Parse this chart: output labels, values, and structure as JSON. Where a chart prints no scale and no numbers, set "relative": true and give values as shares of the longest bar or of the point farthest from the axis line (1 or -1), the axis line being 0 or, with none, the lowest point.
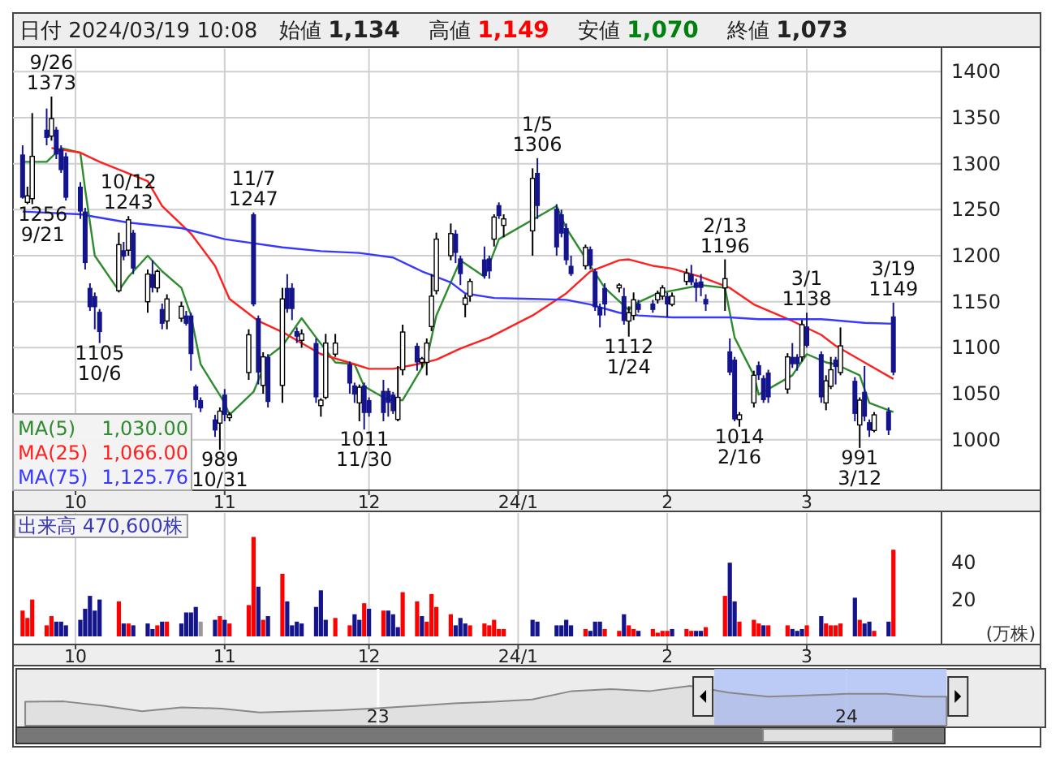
{
  "chart_data": [
    {
      "type": "candlestick",
      "title": "日付 2024/03/19 10:08",
      "x": [
        "2023-09-20",
        "2023-09-21",
        "2023-09-22",
        "2023-09-25",
        "2023-09-26",
        "2023-09-27",
        "2023-09-28",
        "2023-09-29",
        "2023-10-02",
        "2023-10-03",
        "2023-10-04",
        "2023-10-05",
        "2023-10-06",
        "2023-10-10",
        "2023-10-11",
        "2023-10-12",
        "2023-10-13",
        "2023-10-16",
        "2023-10-17",
        "2023-10-18",
        "2023-10-19",
        "2023-10-20",
        "2023-10-23",
        "2023-10-24",
        "2023-10-25",
        "2023-10-26",
        "2023-10-27",
        "2023-10-30",
        "2023-10-31",
        "2023-11-01",
        "2023-11-02",
        "2023-11-06",
        "2023-11-07",
        "2023-11-08",
        "2023-11-09",
        "2023-11-10",
        "2023-11-13",
        "2023-11-14",
        "2023-11-15",
        "2023-11-16",
        "2023-11-17",
        "2023-11-20",
        "2023-11-21",
        "2023-11-22",
        "2023-11-24",
        "2023-11-27",
        "2023-11-28",
        "2023-11-29",
        "2023-11-30",
        "2023-12-01",
        "2023-12-04",
        "2023-12-05",
        "2023-12-06",
        "2023-12-07",
        "2023-12-08",
        "2023-12-11",
        "2023-12-12",
        "2023-12-13",
        "2023-12-14",
        "2023-12-15",
        "2023-12-18",
        "2023-12-19",
        "2023-12-20",
        "2023-12-21",
        "2023-12-22",
        "2023-12-25",
        "2023-12-26",
        "2023-12-27",
        "2023-12-28",
        "2023-12-29",
        "2024-01-04",
        "2024-01-05",
        "2024-01-09",
        "2024-01-10",
        "2024-01-11",
        "2024-01-12",
        "2024-01-15",
        "2024-01-16",
        "2024-01-17",
        "2024-01-18",
        "2024-01-19",
        "2024-01-22",
        "2024-01-23",
        "2024-01-24",
        "2024-01-25",
        "2024-01-26",
        "2024-01-29",
        "2024-01-30",
        "2024-01-31",
        "2024-02-01",
        "2024-02-02",
        "2024-02-05",
        "2024-02-06",
        "2024-02-07",
        "2024-02-08",
        "2024-02-09",
        "2024-02-13",
        "2024-02-14",
        "2024-02-15",
        "2024-02-16",
        "2024-02-19",
        "2024-02-20",
        "2024-02-21",
        "2024-02-22",
        "2024-02-26",
        "2024-02-27",
        "2024-02-28",
        "2024-02-29",
        "2024-03-01",
        "2024-03-04",
        "2024-03-05",
        "2024-03-06",
        "2024-03-07",
        "2024-03-08",
        "2024-03-11",
        "2024-03-12",
        "2024-03-13",
        "2024-03-14",
        "2024-03-15",
        "2024-03-18",
        "2024-03-19"
      ],
      "ohlc": [
        [
          1310,
          1320,
          1262,
          1263
        ],
        [
          1258,
          1275,
          1256,
          1265
        ],
        [
          1262,
          1355,
          1256,
          1308
        ],
        [
          1337,
          1360,
          1320,
          1328
        ],
        [
          1330,
          1373,
          1325,
          1349
        ],
        [
          1337,
          1340,
          1305,
          1310
        ],
        [
          1316,
          1320,
          1290,
          1293
        ],
        [
          1308,
          1312,
          1260,
          1263
        ],
        [
          1275,
          1280,
          1240,
          1248
        ],
        [
          1248,
          1252,
          1185,
          1192
        ],
        [
          1165,
          1170,
          1140,
          1144
        ],
        [
          1156,
          1160,
          1120,
          1144
        ],
        [
          1139,
          1142,
          1105,
          1117
        ],
        [
          1162,
          1225,
          1160,
          1212
        ],
        [
          1206,
          1215,
          1195,
          1199
        ],
        [
          1206,
          1243,
          1200,
          1239
        ],
        [
          1225,
          1228,
          1180,
          1186
        ],
        [
          1150,
          1185,
          1138,
          1180
        ],
        [
          1180,
          1195,
          1160,
          1165
        ],
        [
          1165,
          1185,
          1160,
          1183
        ],
        [
          1142,
          1148,
          1120,
          1126
        ],
        [
          1129,
          1158,
          1120,
          1153
        ],
        [
          1132,
          1150,
          1128,
          1145
        ],
        [
          1135,
          1140,
          1124,
          1126
        ],
        [
          1135,
          1138,
          1075,
          1093
        ],
        [
          1058,
          1060,
          1035,
          1043
        ],
        [
          1043,
          1046,
          1030,
          1034
        ],
        [
          1022,
          1027,
          1003,
          1010
        ],
        [
          1018,
          1035,
          989,
          1031
        ],
        [
          1049,
          1055,
          1020,
          1027
        ],
        [
          1024,
          1030,
          1020,
          1027
        ],
        [
          1073,
          1120,
          1065,
          1114
        ],
        [
          1245,
          1247,
          1145,
          1147
        ],
        [
          1132,
          1135,
          1060,
          1073
        ],
        [
          1059,
          1095,
          1050,
          1090
        ],
        [
          1090,
          1093,
          1035,
          1041
        ],
        [
          1059,
          1165,
          1040,
          1153
        ],
        [
          1165,
          1180,
          1138,
          1142
        ],
        [
          1165,
          1170,
          1130,
          1142
        ],
        [
          1118,
          1122,
          1105,
          1112
        ],
        [
          1108,
          1120,
          1100,
          1115
        ],
        [
          1105,
          1110,
          1040,
          1046
        ],
        [
          1037,
          1045,
          1025,
          1043
        ],
        [
          1046,
          1115,
          1044,
          1105
        ],
        [
          1093,
          1115,
          1090,
          1105
        ],
        [
          1082,
          1085,
          1050,
          1061
        ],
        [
          1059,
          1062,
          1040,
          1049
        ],
        [
          1040,
          1060,
          1020,
          1057
        ],
        [
          1059,
          1062,
          1011,
          1029
        ],
        [
          1043,
          1046,
          1025,
          1029
        ],
        [
          1053,
          1065,
          1020,
          1029
        ],
        [
          1053,
          1056,
          1025,
          1040
        ],
        [
          1049,
          1052,
          1028,
          1031
        ],
        [
          1022,
          1080,
          1020,
          1046
        ],
        [
          1076,
          1125,
          1070,
          1117
        ],
        [
          1102,
          1105,
          1075,
          1084
        ],
        [
          1084,
          1090,
          1078,
          1088
        ],
        [
          1084,
          1110,
          1070,
          1105
        ],
        [
          1123,
          1180,
          1118,
          1156
        ],
        [
          1162,
          1225,
          1158,
          1218
        ],
        [
          1200,
          1235,
          1195,
          1224
        ],
        [
          1224,
          1228,
          1192,
          1203
        ],
        [
          1197,
          1200,
          1168,
          1180
        ],
        [
          1147,
          1158,
          1133,
          1154
        ],
        [
          1156,
          1175,
          1150,
          1172
        ],
        [
          1196,
          1210,
          1175,
          1178
        ],
        [
          1197,
          1200,
          1175,
          1183
        ],
        [
          1218,
          1245,
          1210,
          1242
        ],
        [
          1255,
          1258,
          1240,
          1243
        ],
        [
          1233,
          1245,
          1220,
          1240
        ],
        [
          1227,
          1295,
          1200,
          1284
        ],
        [
          1290,
          1306,
          1240,
          1254
        ],
        [
          1251,
          1256,
          1200,
          1209
        ],
        [
          1245,
          1250,
          1220,
          1224
        ],
        [
          1230,
          1235,
          1190,
          1195
        ],
        [
          1189,
          1200,
          1178,
          1180
        ],
        [
          1189,
          1212,
          1185,
          1209
        ],
        [
          1207,
          1210,
          1185,
          1189
        ],
        [
          1183,
          1186,
          1140,
          1144
        ],
        [
          1144,
          1148,
          1122,
          1135
        ],
        [
          1165,
          1170,
          1135,
          1147
        ],
        [
          1165,
          1170,
          1160,
          1168
        ],
        [
          1156,
          1165,
          1125,
          1129
        ],
        [
          1129,
          1145,
          1112,
          1138
        ],
        [
          1135,
          1160,
          1130,
          1152
        ],
        [
          1148,
          1152,
          1138,
          1141
        ],
        [
          1148,
          1152,
          1138,
          1141
        ],
        [
          1152,
          1162,
          1148,
          1159
        ],
        [
          1156,
          1168,
          1152,
          1165
        ],
        [
          1156,
          1160,
          1133,
          1147
        ],
        [
          1147,
          1160,
          1145,
          1156
        ],
        [
          1172,
          1186,
          1168,
          1181
        ],
        [
          1180,
          1190,
          1168,
          1171
        ],
        [
          1171,
          1175,
          1150,
          1165
        ],
        [
          1172,
          1180,
          1156,
          1165
        ],
        [
          1153,
          1158,
          1140,
          1147
        ],
        [
          1165,
          1196,
          1140,
          1175
        ],
        [
          1096,
          1110,
          1070,
          1073
        ],
        [
          1087,
          1090,
          1020,
          1022
        ],
        [
          1022,
          1030,
          1014,
          1027
        ],
        [
          1040,
          1075,
          1035,
          1070
        ],
        [
          1081,
          1085,
          1065,
          1070
        ],
        [
          1067,
          1070,
          1040,
          1043
        ],
        [
          1073,
          1076,
          1040,
          1046
        ],
        [
          1055,
          1094,
          1050,
          1090
        ],
        [
          1090,
          1105,
          1078,
          1082
        ],
        [
          1090,
          1093,
          1075,
          1082
        ],
        [
          1090,
          1130,
          1085,
          1125
        ],
        [
          1123,
          1138,
          1100,
          1102
        ],
        [
          1093,
          1096,
          1040,
          1046
        ],
        [
          1040,
          1070,
          1032,
          1064
        ],
        [
          1058,
          1090,
          1055,
          1076
        ],
        [
          1087,
          1090,
          1060,
          1079
        ],
        [
          1073,
          1122,
          1070,
          1102
        ],
        [
          1064,
          1068,
          1020,
          1028
        ],
        [
          1016,
          1046,
          991,
          1043
        ],
        [
          1052,
          1080,
          1020,
          1025
        ],
        [
          1019,
          1022,
          1003,
          1010
        ],
        [
          1010,
          1030,
          1008,
          1027
        ],
        [
          1031,
          1035,
          1005,
          1010
        ],
        [
          1134,
          1149,
          1070,
          1073
        ]
      ],
      "series": [
        {
          "name": "MA(5)",
          "type": "line",
          "color": "#2e8b2e",
          "x": [
            "2023-09-20",
            "2023-09-25",
            "2023-09-28",
            "2023-10-02",
            "2023-10-03",
            "2023-10-05",
            "2023-10-10",
            "2023-10-12",
            "2023-10-16",
            "2023-10-19",
            "2023-10-23",
            "2023-10-25",
            "2023-10-27",
            "2023-11-01",
            "2023-11-02",
            "2023-11-07",
            "2023-11-10",
            "2023-11-13",
            "2023-11-15",
            "2023-11-17",
            "2023-11-20",
            "2023-11-24",
            "2023-11-28",
            "2023-11-30",
            "2023-12-05",
            "2023-12-08",
            "2023-12-13",
            "2023-12-15",
            "2023-12-20",
            "2023-12-25",
            "2023-12-28",
            "2024-01-09",
            "2024-01-11",
            "2024-01-16",
            "2024-01-19",
            "2024-01-24",
            "2024-01-25",
            "2024-01-30",
            "2024-02-02",
            "2024-02-08",
            "2024-02-13",
            "2024-02-15",
            "2024-02-19",
            "2024-02-20",
            "2024-02-27",
            "2024-03-01",
            "2024-03-05",
            "2024-03-07",
            "2024-03-12",
            "2024-03-14",
            "2024-03-19"
          ],
          "values": [
            1302,
            1302,
            1317,
            1312,
            1272,
            1200,
            1162,
            1177,
            1200,
            1183,
            1165,
            1135,
            1082,
            1040,
            1027,
            1052,
            1090,
            1102,
            1117,
            1132,
            1111,
            1084,
            1082,
            1058,
            1043,
            1043,
            1087,
            1135,
            1195,
            1177,
            1218,
            1254,
            1230,
            1189,
            1165,
            1141,
            1147,
            1159,
            1162,
            1168,
            1165,
            1111,
            1070,
            1049,
            1070,
            1093,
            1084,
            1082,
            1070,
            1040,
            1030
          ]
        },
        {
          "name": "MA(25)",
          "type": "line",
          "color": "#ff2020",
          "x": [
            "2023-09-26",
            "2023-10-02",
            "2023-10-06",
            "2023-10-16",
            "2023-10-19",
            "2023-10-25",
            "2023-10-30",
            "2023-11-02",
            "2023-11-08",
            "2023-11-13",
            "2023-11-16",
            "2023-11-21",
            "2023-11-28",
            "2023-12-01",
            "2023-12-06",
            "2023-12-11",
            "2023-12-15",
            "2023-12-20",
            "2023-12-26",
            "2024-01-04",
            "2024-01-11",
            "2024-01-16",
            "2024-01-22",
            "2024-01-24",
            "2024-01-29",
            "2024-02-02",
            "2024-02-08",
            "2024-02-14",
            "2024-02-19",
            "2024-02-27",
            "2024-03-04",
            "2024-03-07",
            "2024-03-13",
            "2024-03-19"
          ],
          "values": [
            1317,
            1312,
            1302,
            1281,
            1254,
            1224,
            1189,
            1153,
            1129,
            1117,
            1108,
            1093,
            1082,
            1077,
            1077,
            1082,
            1087,
            1099,
            1111,
            1135,
            1159,
            1183,
            1195,
            1196,
            1189,
            1186,
            1177,
            1165,
            1147,
            1129,
            1114,
            1102,
            1084,
            1066
          ]
        },
        {
          "name": "MA(75)",
          "type": "line",
          "color": "#3838ff",
          "x": [
            "2023-09-20",
            "2023-10-02",
            "2023-10-12",
            "2023-10-23",
            "2023-11-01",
            "2023-11-13",
            "2023-11-21",
            "2023-11-29",
            "2023-12-06",
            "2023-12-12",
            "2023-12-18",
            "2023-12-21",
            "2023-12-27",
            "2024-01-04",
            "2024-01-11",
            "2024-01-16",
            "2024-01-22",
            "2024-01-26",
            "2024-02-02",
            "2024-02-14",
            "2024-02-20",
            "2024-03-04",
            "2024-03-13",
            "2024-03-19"
          ],
          "values": [
            1248,
            1245,
            1236,
            1230,
            1218,
            1209,
            1205,
            1203,
            1198,
            1183,
            1171,
            1159,
            1154,
            1153,
            1152,
            1147,
            1138,
            1135,
            1133,
            1133,
            1131,
            1131,
            1127,
            1126
          ]
        }
      ],
      "ylim": [
        945,
        1425
      ],
      "yticks": [
        1000,
        1050,
        1100,
        1150,
        1200,
        1250,
        1300,
        1350,
        1400
      ],
      "xlim": [
        "2023-09-18",
        "2024-03-29"
      ],
      "xticks": [
        {
          "value": "2023-10-01",
          "label": "10"
        },
        {
          "value": "2023-11-01",
          "label": "11"
        },
        {
          "value": "2023-12-01",
          "label": "12"
        },
        {
          "value": "2024-01-01",
          "label": "24/1"
        },
        {
          "value": "2024-02-01",
          "label": "2"
        },
        {
          "value": "2024-03-01",
          "label": "3"
        }
      ],
      "grid": true,
      "legend": "bottom left",
      "annotations": [
        "始値 1,134",
        "高値 1,149",
        "安値 1,070",
        "終値 1,073",
        "1,030.00",
        "1,066.00",
        "1,125.76",
        {
          "text": "9/26\n1373",
          "x": "2023-09-26",
          "y": 1373
        },
        {
          "text": "1256\n9/21",
          "x": "2023-09-21",
          "y": 1256
        },
        {
          "text": "10/12\n1243",
          "x": "2023-10-12",
          "y": 1243
        },
        {
          "text": "1105\n10/6",
          "x": "2023-10-06",
          "y": 1105
        },
        {
          "text": "11/7\n1247",
          "x": "2023-11-07",
          "y": 1247
        },
        {
          "text": "989\n10/31",
          "x": "2023-10-31",
          "y": 989
        },
        {
          "text": "1011\n11/30",
          "x": "2023-11-30",
          "y": 1011
        },
        {
          "text": "1/5\n1306",
          "x": "2024-01-05",
          "y": 1306
        },
        {
          "text": "1112\n1/24",
          "x": "2024-01-24",
          "y": 1112
        },
        {
          "text": "2/13\n1196",
          "x": "2024-02-13",
          "y": 1196
        },
        {
          "text": "1014\n2/16",
          "x": "2024-02-16",
          "y": 1014
        },
        {
          "text": "3/1\n1138",
          "x": "2024-03-01",
          "y": 1138
        },
        {
          "text": "991\n3/12",
          "x": "2024-03-12",
          "y": 991
        },
        {
          "text": "3/19\n1149",
          "x": "2024-03-19",
          "y": 1149
        }
      ]
    },
    {
      "type": "bar",
      "title": "出来高  470,600株",
      "ylabel": "(万株)",
      "x": [
        "2023-09-20",
        "2023-09-21",
        "2023-09-22",
        "2023-09-25",
        "2023-09-26",
        "2023-09-27",
        "2023-09-28",
        "2023-09-29",
        "2023-10-02",
        "2023-10-03",
        "2023-10-04",
        "2023-10-05",
        "2023-10-06",
        "2023-10-10",
        "2023-10-11",
        "2023-10-12",
        "2023-10-13",
        "2023-10-16",
        "2023-10-17",
        "2023-10-18",
        "2023-10-19",
        "2023-10-20",
        "2023-10-23",
        "2023-10-24",
        "2023-10-25",
        "2023-10-26",
        "2023-10-27",
        "2023-10-30",
        "2023-10-31",
        "2023-11-01",
        "2023-11-02",
        "2023-11-06",
        "2023-11-07",
        "2023-11-08",
        "2023-11-09",
        "2023-11-10",
        "2023-11-13",
        "2023-11-14",
        "2023-11-15",
        "2023-11-16",
        "2023-11-17",
        "2023-11-20",
        "2023-11-21",
        "2023-11-22",
        "2023-11-24",
        "2023-11-27",
        "2023-11-28",
        "2023-11-29",
        "2023-11-30",
        "2023-12-01",
        "2023-12-04",
        "2023-12-05",
        "2023-12-06",
        "2023-12-07",
        "2023-12-08",
        "2023-12-11",
        "2023-12-12",
        "2023-12-13",
        "2023-12-14",
        "2023-12-15",
        "2023-12-18",
        "2023-12-19",
        "2023-12-20",
        "2023-12-21",
        "2023-12-22",
        "2023-12-25",
        "2023-12-26",
        "2023-12-27",
        "2023-12-28",
        "2023-12-29",
        "2024-01-04",
        "2024-01-05",
        "2024-01-09",
        "2024-01-10",
        "2024-01-11",
        "2024-01-12",
        "2024-01-15",
        "2024-01-16",
        "2024-01-17",
        "2024-01-18",
        "2024-01-19",
        "2024-01-22",
        "2024-01-23",
        "2024-01-24",
        "2024-01-25",
        "2024-01-26",
        "2024-01-29",
        "2024-01-30",
        "2024-01-31",
        "2024-02-01",
        "2024-02-02",
        "2024-02-05",
        "2024-02-06",
        "2024-02-07",
        "2024-02-08",
        "2024-02-09",
        "2024-02-13",
        "2024-02-14",
        "2024-02-15",
        "2024-02-16",
        "2024-02-19",
        "2024-02-20",
        "2024-02-21",
        "2024-02-22",
        "2024-02-26",
        "2024-02-27",
        "2024-02-28",
        "2024-02-29",
        "2024-03-01",
        "2024-03-04",
        "2024-03-05",
        "2024-03-06",
        "2024-03-07",
        "2024-03-08",
        "2024-03-11",
        "2024-03-12",
        "2024-03-13",
        "2024-03-14",
        "2024-03-15",
        "2024-03-18",
        "2024-03-19"
      ],
      "values": [
        14,
        10,
        20,
        6,
        11,
        8,
        8,
        6,
        9,
        15,
        22,
        14,
        20,
        19,
        7,
        7,
        6,
        7,
        4,
        6,
        8,
        8,
        7,
        13,
        13,
        16,
        8,
        9,
        11,
        9,
        7,
        17,
        54,
        27,
        9,
        11,
        34,
        19,
        6,
        8,
        7,
        16,
        25,
        9,
        10,
        6,
        12,
        9,
        18,
        15,
        14,
        14,
        12,
        5,
        24,
        19,
        11,
        8,
        23,
        16,
        12,
        6,
        10,
        7,
        6,
        7,
        6,
        9,
        4,
        4,
        9,
        8,
        6,
        6,
        9,
        6,
        4,
        3,
        8,
        8,
        4,
        3,
        12,
        6,
        4,
        3,
        4,
        2,
        3,
        3,
        4,
        4,
        3,
        3,
        3,
        5,
        22,
        40,
        19,
        8,
        9,
        7,
        6,
        6,
        6,
        4,
        3,
        4,
        6,
        11,
        7,
        6,
        6,
        7,
        21,
        9,
        7,
        8,
        3,
        8,
        47.06
      ],
      "colors": [
        "#ff0000",
        "#ff0000",
        "#ff0000",
        "#ff0000",
        "#ff0000",
        "#14148c",
        "#14148c",
        "#14148c",
        "#14148c",
        "#14148c",
        "#14148c",
        "#14148c",
        "#14148c",
        "#ff0000",
        "#14148c",
        "#ff0000",
        "#14148c",
        "#14148c",
        "#14148c",
        "#ff0000",
        "#14148c",
        "#ff0000",
        "#14148c",
        "#14148c",
        "#14148c",
        "#14148c",
        "#999999",
        "#14148c",
        "#ff0000",
        "#14148c",
        "#ff0000",
        "#ff0000",
        "#ff0000",
        "#14148c",
        "#ff0000",
        "#14148c",
        "#ff0000",
        "#14148c",
        "#14148c",
        "#14148c",
        "#14148c",
        "#14148c",
        "#14148c",
        "#14148c",
        "#ff0000",
        "#ff0000",
        "#14148c",
        "#14148c",
        "#ff0000",
        "#14148c",
        "#ff0000",
        "#14148c",
        "#14148c",
        "#14148c",
        "#ff0000",
        "#ff0000",
        "#14148c",
        "#ff0000",
        "#ff0000",
        "#ff0000",
        "#ff0000",
        "#14148c",
        "#14148c",
        "#14148c",
        "#ff0000",
        "#ff0000",
        "#ff0000",
        "#ff0000",
        "#ff0000",
        "#ff0000",
        "#14148c",
        "#14148c",
        "#14148c",
        "#14148c",
        "#14148c",
        "#14148c",
        "#ff0000",
        "#14148c",
        "#14148c",
        "#14148c",
        "#ff0000",
        "#ff0000",
        "#14148c",
        "#ff0000",
        "#ff0000",
        "#14148c",
        "#ff0000",
        "#ff0000",
        "#ff0000",
        "#ff0000",
        "#14148c",
        "#ff0000",
        "#ff0000",
        "#14148c",
        "#14148c",
        "#ff0000",
        "#ff0000",
        "#14148c",
        "#14148c",
        "#ff0000",
        "#ff0000",
        "#ff0000",
        "#14148c",
        "#ff0000",
        "#ff0000",
        "#14148c",
        "#14148c",
        "#14148c",
        "#ff0000",
        "#14148c",
        "#ff0000",
        "#ff0000",
        "#ff0000",
        "#ff0000",
        "#14148c",
        "#ff0000",
        "#14148c",
        "#14148c",
        "#ff0000",
        "#14148c",
        "#ff0000"
      ],
      "ylim": [
        0,
        67
      ],
      "yticks": [
        20,
        40
      ],
      "xlim": [
        "2023-09-18",
        "2024-03-29"
      ],
      "xticks": [
        {
          "value": "2023-10-01",
          "label": "10"
        },
        {
          "value": "2023-11-01",
          "label": "11"
        },
        {
          "value": "2023-12-01",
          "label": "12"
        },
        {
          "value": "2024-01-01",
          "label": "24/1"
        },
        {
          "value": "2024-02-01",
          "label": "2"
        },
        {
          "value": "2024-03-01",
          "label": "3"
        }
      ],
      "grid": "x"
    },
    {
      "type": "area",
      "relative": true,
      "color": "#888888",
      "x": [
        "2022-04",
        "2022-05",
        "2022-06",
        "2022-07",
        "2022-08",
        "2022-09",
        "2022-10",
        "2022-11",
        "2022-12",
        "2023-01",
        "2023-02",
        "2023-03",
        "2023-04",
        "2023-05",
        "2023-06",
        "2023-07",
        "2023-08",
        "2023-09",
        "2023-10",
        "2023-11",
        "2023-12",
        "2024-01",
        "2024-02",
        "2024-03",
        "2024-03-19"
      ],
      "values": [
        0.6,
        0.61,
        0.5,
        0.36,
        0.46,
        0.43,
        0.33,
        0.36,
        0.39,
        0.44,
        0.5,
        0.56,
        0.6,
        0.66,
        0.87,
        0.92,
        0.87,
        1,
        0.83,
        0.73,
        0.76,
        0.8,
        0.8,
        0.73,
        0.73
      ],
      "xlim": [
        "2022-03-25",
        "2024-06-04"
      ],
      "xticks": [
        {
          "value": "2023-01",
          "label": "23"
        },
        {
          "value": "2024-01",
          "label": "24"
        }
      ],
      "grid": "x",
      "bands": [
        {
          "axis": "x",
          "from": "2023-09-20",
          "to": "2024-03-19",
          "color": "#b4c4f8"
        }
      ]
    }
  ]
}
